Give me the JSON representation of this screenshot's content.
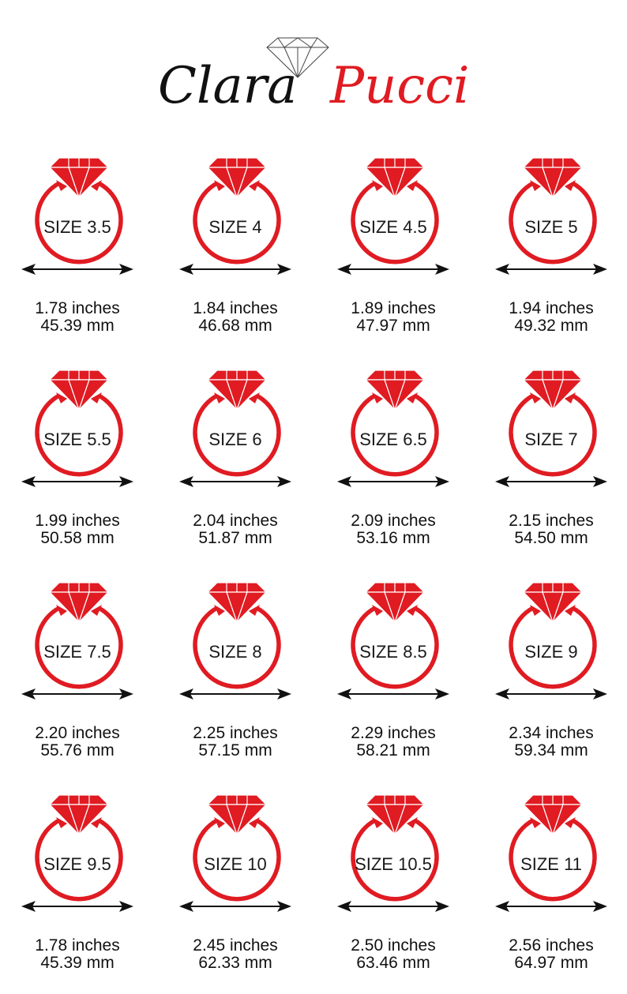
{
  "brand": {
    "first": "Clara",
    "last": "Pucci",
    "first_color": "#111111",
    "last_color": "#e01b22"
  },
  "colors": {
    "ring": "#e01b22",
    "arrow": "#111111"
  },
  "sizes": [
    {
      "label": "SIZE 3.5",
      "inches": "1.78 inches",
      "mm": "45.39 mm"
    },
    {
      "label": "SIZE 4",
      "inches": "1.84 inches",
      "mm": "46.68 mm"
    },
    {
      "label": "SIZE 4.5",
      "inches": "1.89 inches",
      "mm": "47.97 mm"
    },
    {
      "label": "SIZE 5",
      "inches": "1.94 inches",
      "mm": "49.32 mm"
    },
    {
      "label": "SIZE 5.5",
      "inches": "1.99 inches",
      "mm": "50.58 mm"
    },
    {
      "label": "SIZE 6",
      "inches": "2.04 inches",
      "mm": "51.87 mm"
    },
    {
      "label": "SIZE 6.5",
      "inches": "2.09 inches",
      "mm": "53.16 mm"
    },
    {
      "label": "SIZE 7",
      "inches": "2.15 inches",
      "mm": "54.50 mm"
    },
    {
      "label": "SIZE 7.5",
      "inches": "2.20 inches",
      "mm": "55.76 mm"
    },
    {
      "label": "SIZE 8",
      "inches": "2.25 inches",
      "mm": "57.15 mm"
    },
    {
      "label": "SIZE 8.5",
      "inches": "2.29 inches",
      "mm": "58.21 mm"
    },
    {
      "label": "SIZE 9",
      "inches": "2.34 inches",
      "mm": "59.34 mm"
    },
    {
      "label": "SIZE 9.5",
      "inches": "1.78 inches",
      "mm": "45.39 mm"
    },
    {
      "label": "SIZE 10",
      "inches": "2.45 inches",
      "mm": "62.33 mm"
    },
    {
      "label": "SIZE 10.5",
      "inches": "2.50 inches",
      "mm": "63.46 mm"
    },
    {
      "label": "SIZE 11",
      "inches": "2.56 inches",
      "mm": "64.97 mm"
    }
  ]
}
